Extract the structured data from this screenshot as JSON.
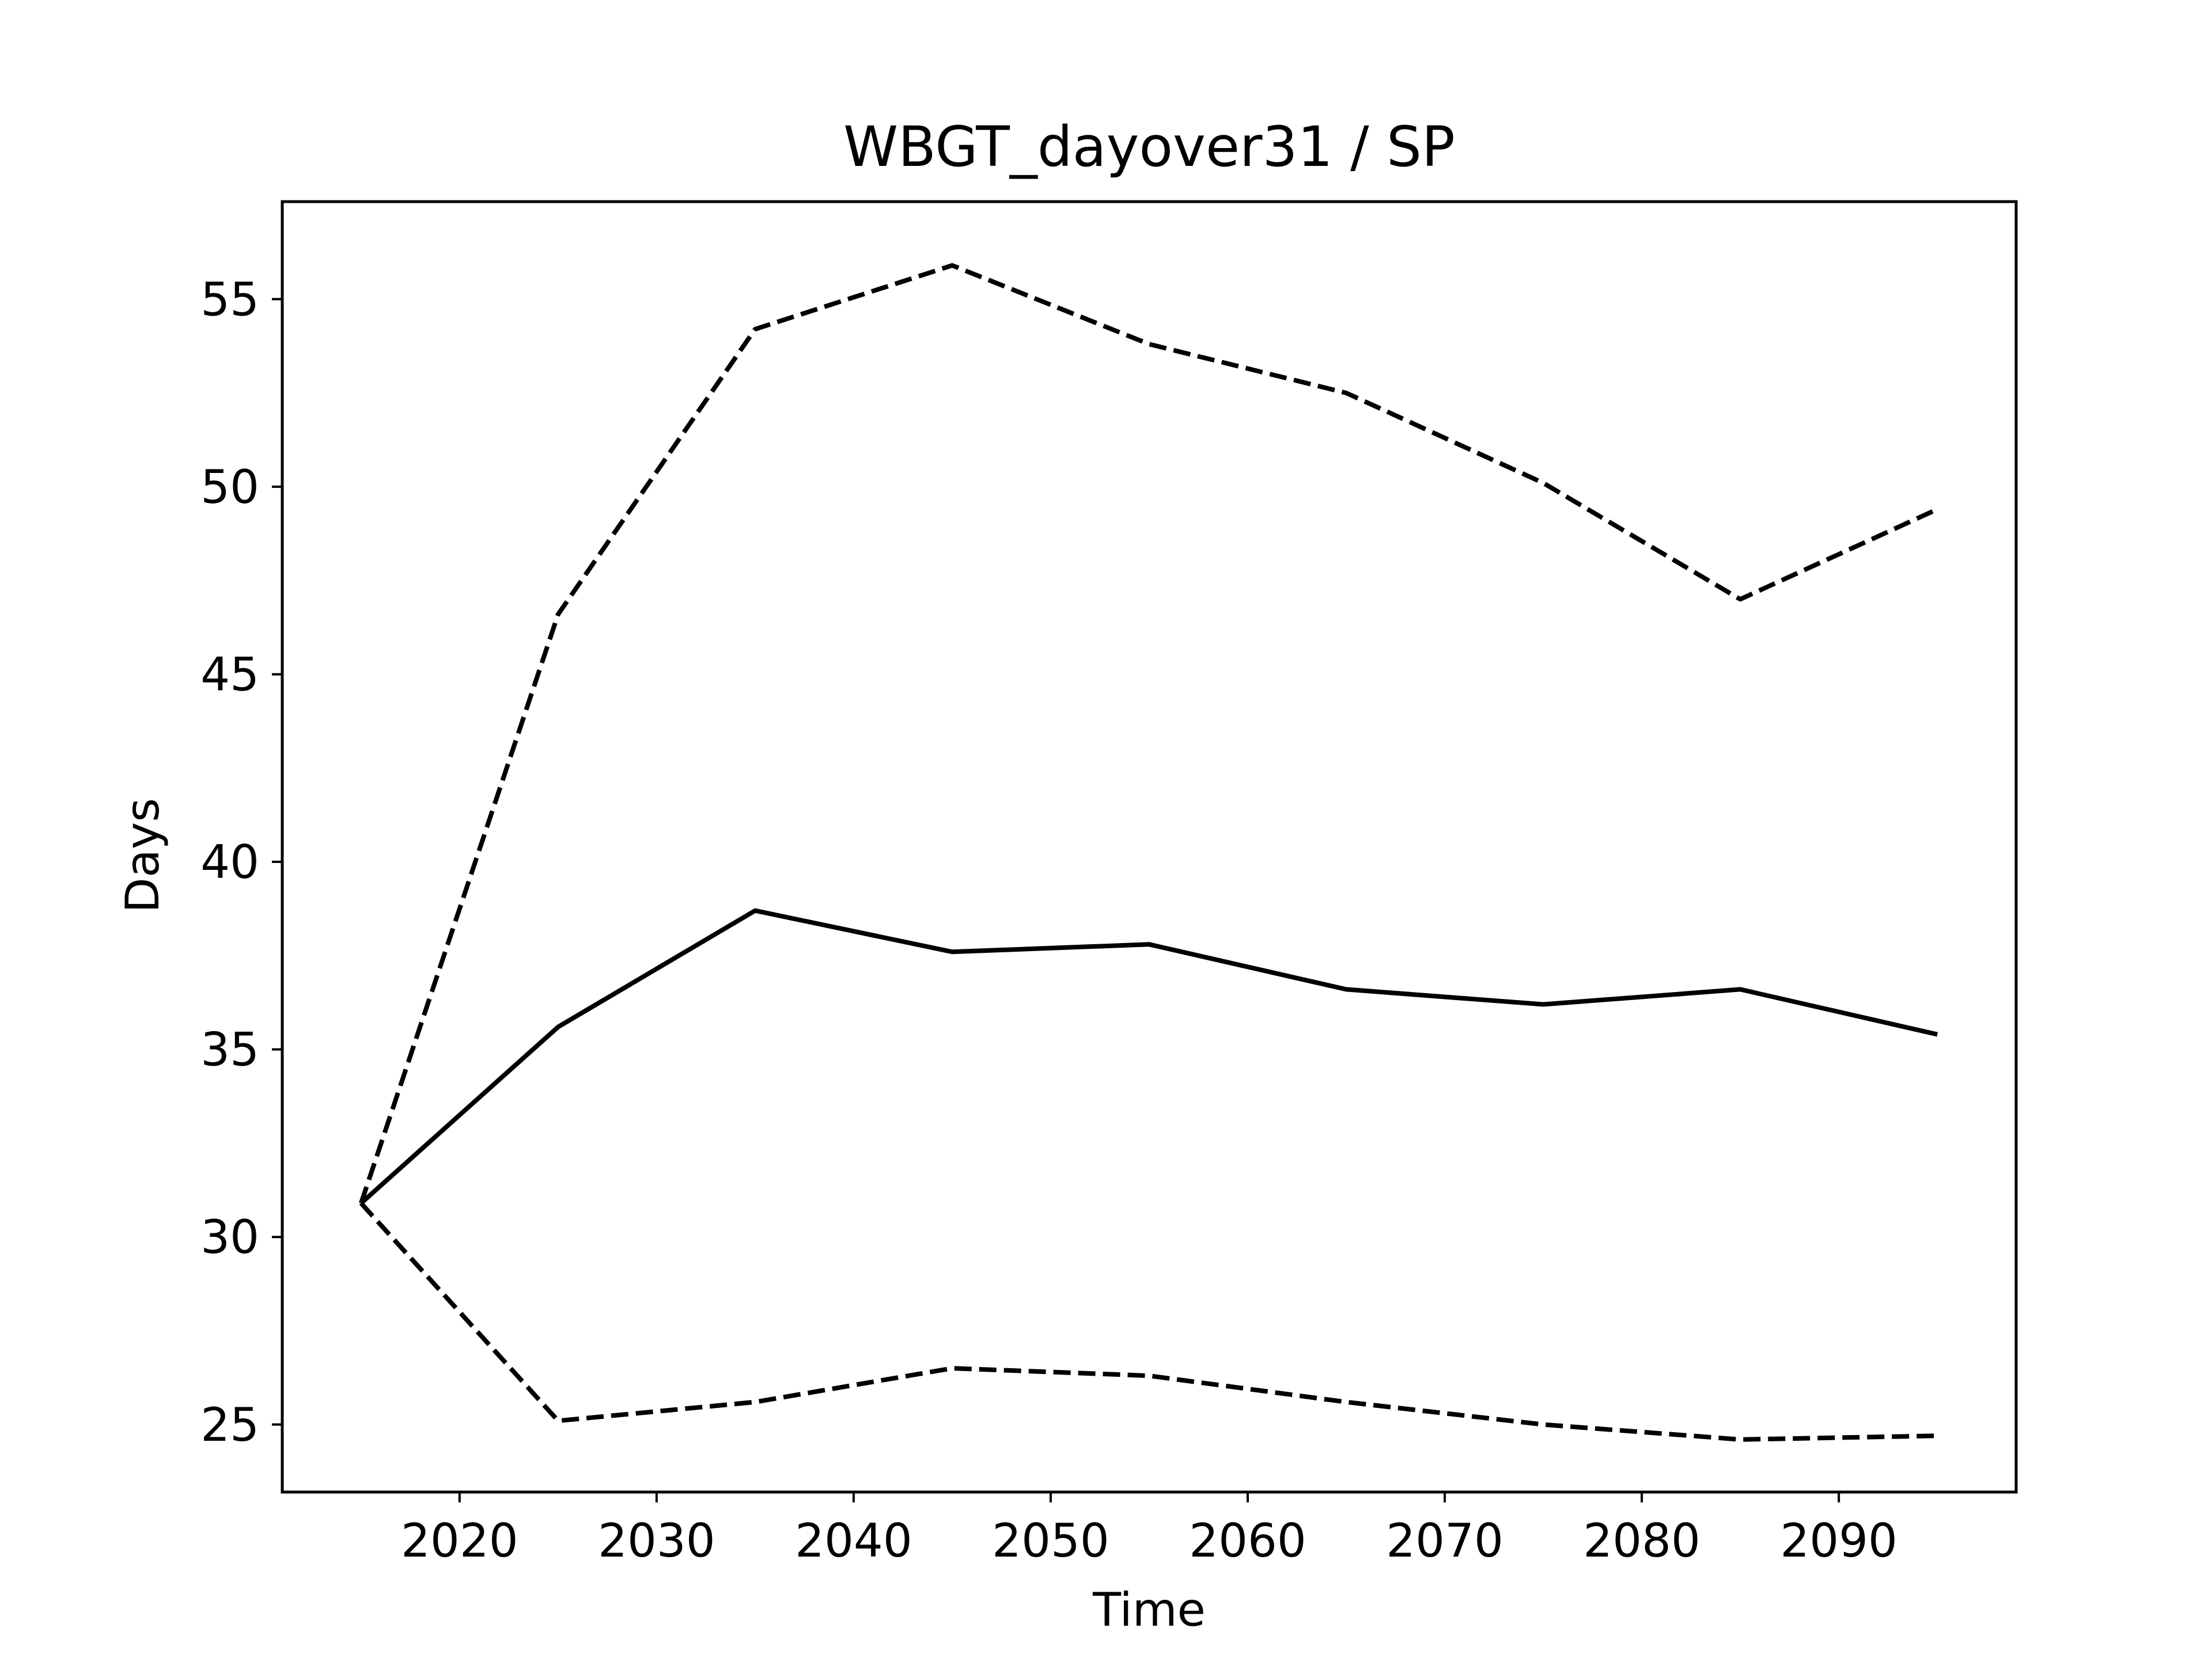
{
  "chart_data": {
    "type": "line",
    "title": "WBGT_dayover31 / SP",
    "xlabel": "Time",
    "ylabel": "Days",
    "xlim": [
      2011,
      2099
    ],
    "ylim": [
      23.2,
      57.6
    ],
    "x_ticks": [
      2020,
      2030,
      2040,
      2050,
      2060,
      2070,
      2080,
      2090
    ],
    "y_ticks": [
      25,
      30,
      35,
      40,
      45,
      50,
      55
    ],
    "grid": false,
    "x": [
      2015,
      2025,
      2035,
      2045,
      2055,
      2065,
      2075,
      2085,
      2095
    ],
    "series": [
      {
        "style": "solid",
        "color": "#000000",
        "values": [
          30.9,
          35.6,
          38.7,
          37.6,
          37.8,
          36.6,
          36.2,
          36.6,
          35.4
        ]
      },
      {
        "style": "dashed",
        "color": "#000000",
        "values": [
          30.9,
          46.6,
          54.2,
          55.9,
          53.8,
          52.5,
          50.1,
          47.0,
          49.4
        ]
      },
      {
        "style": "dashed",
        "color": "#000000",
        "values": [
          30.9,
          25.1,
          25.6,
          26.5,
          26.3,
          25.6,
          25.0,
          24.6,
          24.7
        ]
      }
    ]
  }
}
